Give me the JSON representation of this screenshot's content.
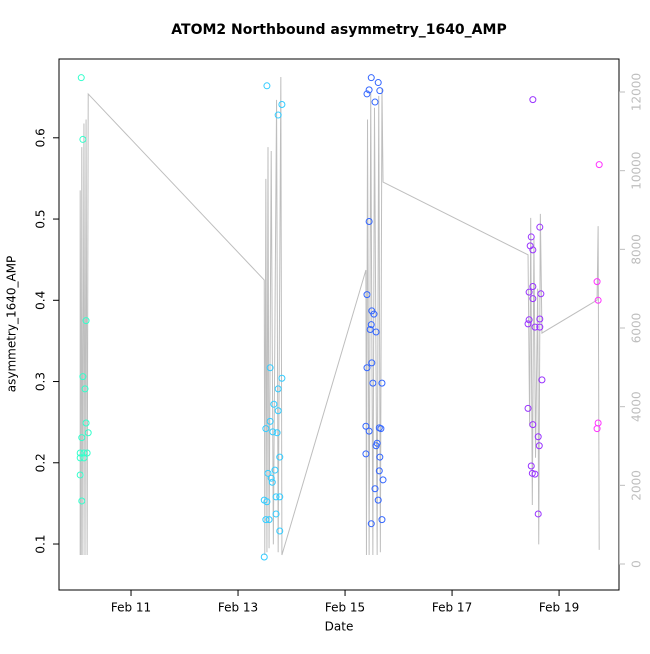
{
  "chart_data": {
    "type": "scatter",
    "title": "ATOM2 Northbound asymmetry_1640_AMP",
    "x_label": "Date",
    "y_label": "asymmetry_1640_AMP",
    "xlim": [
      9.654,
      20.12
    ],
    "xticks": [
      {
        "value": 11,
        "label": "Feb 11"
      },
      {
        "value": 13,
        "label": "Feb 13"
      },
      {
        "value": 15,
        "label": "Feb 15"
      },
      {
        "value": 17,
        "label": "Feb 17"
      },
      {
        "value": 19,
        "label": "Feb 19"
      }
    ],
    "ylim": [
      0.0434,
      0.697
    ],
    "yticks": [
      0.1,
      0.2,
      0.3,
      0.4,
      0.5,
      0.6
    ],
    "y2lim": [
      -661,
      12839
    ],
    "y2ticks": [
      0,
      2000,
      4000,
      6000,
      8000,
      10000,
      12000
    ],
    "series": [
      {
        "color": "#33ffcc",
        "x": [
          10.07,
          10.1,
          10.16,
          10.1,
          10.14,
          10.16,
          10.2,
          10.08,
          10.05,
          10.12,
          10.18,
          10.05,
          10.12,
          10.05,
          10.08
        ],
        "values": [
          0.674,
          0.598,
          0.375,
          0.306,
          0.291,
          0.249,
          0.237,
          0.231,
          0.212,
          0.212,
          0.212,
          0.206,
          0.206,
          0.185,
          0.153
        ]
      },
      {
        "color": "#33ccff",
        "x": [
          13.54,
          13.75,
          13.82,
          13.6,
          13.82,
          13.75,
          13.67,
          13.75,
          13.52,
          13.65,
          13.73,
          13.6,
          13.78,
          13.56,
          13.62,
          13.64,
          13.69,
          13.71,
          13.78,
          13.49,
          13.54,
          13.71,
          13.52,
          13.58,
          13.78,
          13.49
        ],
        "values": [
          0.664,
          0.628,
          0.641,
          0.317,
          0.304,
          0.291,
          0.272,
          0.264,
          0.242,
          0.238,
          0.237,
          0.251,
          0.207,
          0.187,
          0.181,
          0.176,
          0.191,
          0.158,
          0.158,
          0.154,
          0.152,
          0.137,
          0.13,
          0.13,
          0.116,
          0.084
        ]
      },
      {
        "color": "#3366ff",
        "x": [
          15.49,
          15.41,
          15.45,
          15.62,
          15.56,
          15.65,
          15.45,
          15.41,
          15.5,
          15.54,
          15.49,
          15.47,
          15.58,
          15.5,
          15.41,
          15.69,
          15.52,
          15.39,
          15.45,
          15.64,
          15.6,
          15.67,
          15.58,
          15.39,
          15.65,
          15.64,
          15.71,
          15.56,
          15.62,
          15.49,
          15.69
        ],
        "values": [
          0.674,
          0.654,
          0.659,
          0.668,
          0.644,
          0.658,
          0.497,
          0.407,
          0.387,
          0.383,
          0.37,
          0.364,
          0.361,
          0.323,
          0.317,
          0.298,
          0.298,
          0.245,
          0.239,
          0.243,
          0.224,
          0.242,
          0.221,
          0.211,
          0.207,
          0.19,
          0.179,
          0.168,
          0.154,
          0.125,
          0.13
        ]
      },
      {
        "color": "#9933ff",
        "x": [
          18.51,
          18.64,
          18.48,
          18.46,
          18.51,
          18.51,
          18.44,
          18.66,
          18.51,
          18.44,
          18.64,
          18.42,
          18.55,
          18.64,
          18.68,
          18.42,
          18.51,
          18.61,
          18.63,
          18.48,
          18.5,
          18.55,
          18.61
        ],
        "values": [
          0.647,
          0.49,
          0.478,
          0.467,
          0.462,
          0.417,
          0.41,
          0.408,
          0.402,
          0.376,
          0.377,
          0.371,
          0.367,
          0.367,
          0.302,
          0.267,
          0.247,
          0.232,
          0.221,
          0.196,
          0.187,
          0.186,
          0.137
        ]
      },
      {
        "color": "#ff33ff",
        "x": [
          19.75,
          19.71,
          19.73,
          19.73,
          19.71
        ],
        "values": [
          0.567,
          0.423,
          0.4,
          0.249,
          0.242
        ]
      },
      {
        "color": "#bebebe",
        "axis": "y2",
        "x": [
          10.05,
          10.05,
          10.07,
          10.08,
          10.1,
          10.12,
          10.14,
          10.16,
          10.18,
          10.2,
          13.49,
          13.5,
          13.52,
          13.54,
          13.56,
          13.58,
          13.62,
          13.66,
          13.72,
          13.75,
          13.8,
          13.82,
          15.39,
          15.4,
          15.42,
          15.45,
          15.48,
          15.52,
          15.55,
          15.6,
          15.63,
          15.66,
          15.69,
          15.71,
          18.42,
          18.45,
          18.47,
          18.5,
          18.53,
          18.56,
          18.6,
          18.62,
          18.65,
          18.68,
          19.71,
          19.73,
          19.75
        ],
        "values": [
          230,
          9500,
          230,
          10600,
          230,
          11200,
          230,
          11300,
          230,
          11950,
          7220,
          230,
          9790,
          300,
          10600,
          400,
          10500,
          500,
          11800,
          300,
          12380,
          230,
          7475,
          230,
          11300,
          230,
          12000,
          230,
          11600,
          230,
          11900,
          300,
          12100,
          9710,
          7860,
          3500,
          8800,
          1500,
          8300,
          2700,
          7000,
          500,
          8900,
          5870,
          6710,
          8590,
          360
        ]
      }
    ]
  }
}
